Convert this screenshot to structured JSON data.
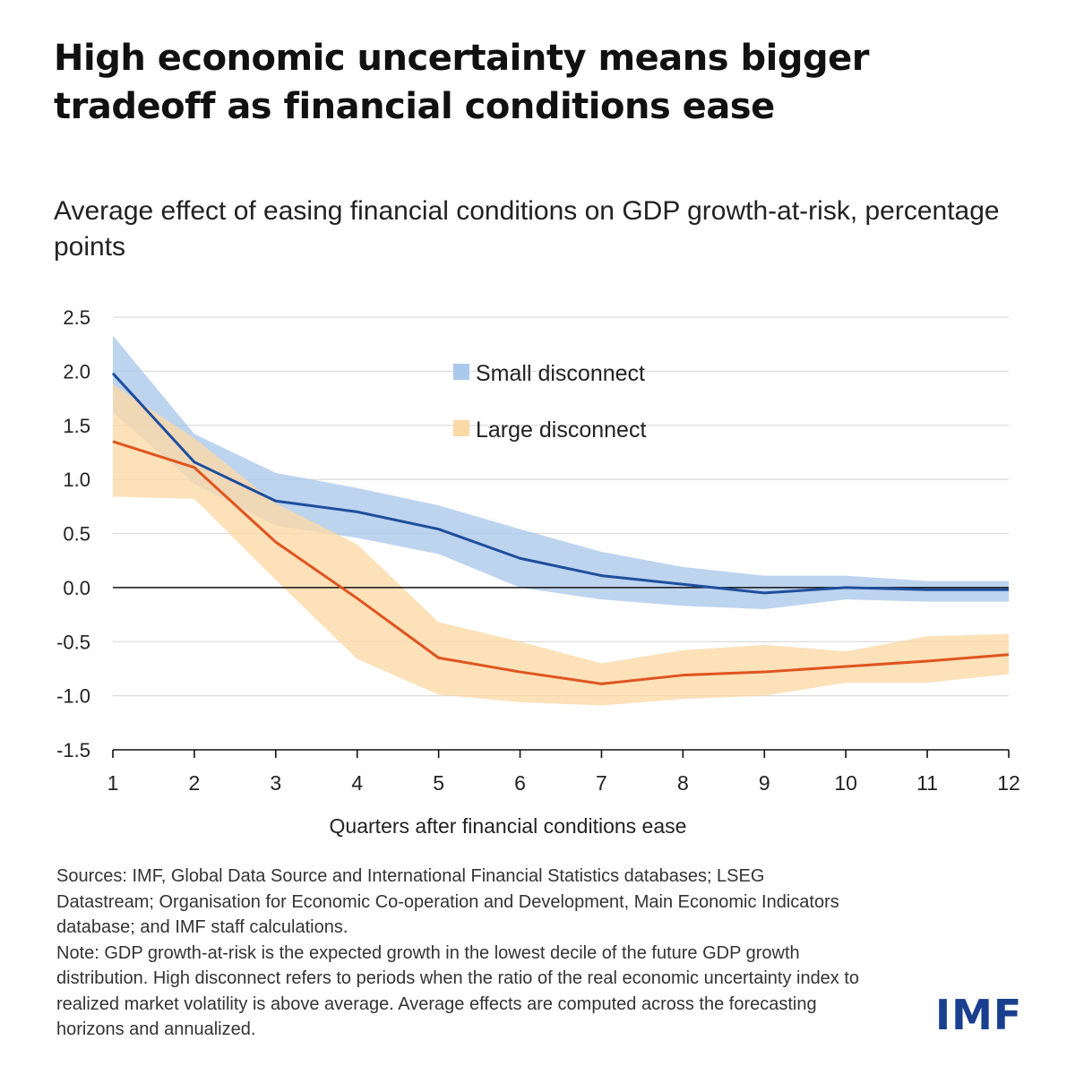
{
  "title": "High economic uncertainty means bigger tradeoff as financial conditions ease",
  "chart_data": {
    "type": "line",
    "title": "Average effect of easing financial conditions on GDP growth-at-risk, percentage points",
    "xlabel": "Quarters after financial conditions ease",
    "ylabel": "",
    "x": [
      1,
      2,
      3,
      4,
      5,
      6,
      7,
      8,
      9,
      10,
      11,
      12
    ],
    "x_tick_labels": [
      "1",
      "2",
      "3",
      "4",
      "5",
      "6",
      "7",
      "8",
      "9",
      "10",
      "11",
      "12"
    ],
    "y_ticks": [
      2.5,
      2.0,
      1.5,
      1.0,
      0.5,
      0.0,
      -0.5,
      -1.0,
      -1.5
    ],
    "y_tick_labels": [
      "2.5",
      "2.0",
      "1.5",
      "1.0",
      "0.5",
      "0.0",
      "-0.5",
      "-1.0",
      "-1.5"
    ],
    "ylim": [
      -1.5,
      2.5
    ],
    "grid": true,
    "legend_position": "top-center",
    "series": [
      {
        "name": "Small disconnect",
        "line_color": "#1f4e9c",
        "band_color": "#aac8ea",
        "values": [
          1.98,
          1.16,
          0.8,
          0.7,
          0.54,
          0.27,
          0.11,
          0.03,
          -0.05,
          0.0,
          -0.02,
          -0.02
        ],
        "upper": [
          2.33,
          1.42,
          1.06,
          0.92,
          0.76,
          0.54,
          0.33,
          0.19,
          0.11,
          0.11,
          0.06,
          0.06
        ],
        "lower": [
          1.62,
          0.96,
          0.57,
          0.46,
          0.31,
          0.0,
          -0.11,
          -0.17,
          -0.2,
          -0.11,
          -0.13,
          -0.13
        ]
      },
      {
        "name": "Large disconnect",
        "line_color": "#e0541f",
        "band_color": "#fbd9a5",
        "values": [
          1.35,
          1.11,
          0.42,
          -0.1,
          -0.65,
          -0.78,
          -0.89,
          -0.81,
          -0.78,
          -0.73,
          -0.68,
          -0.62
        ],
        "upper": [
          1.88,
          1.38,
          0.78,
          0.4,
          -0.32,
          -0.5,
          -0.7,
          -0.58,
          -0.53,
          -0.59,
          -0.45,
          -0.43
        ],
        "lower": [
          0.84,
          0.82,
          0.07,
          -0.66,
          -0.99,
          -1.06,
          -1.09,
          -1.03,
          -1.0,
          -0.88,
          -0.88,
          -0.8
        ]
      }
    ]
  },
  "notes": {
    "sources": "Sources: IMF, Global Data Source and International Financial Statistics databases; LSEG Datastream; Organisation for Economic Co-operation and Development, Main Economic Indicators database; and IMF staff calculations.",
    "note": "Note: GDP growth-at-risk is the expected growth in the lowest decile of the future GDP growth distribution. High disconnect refers to periods when the ratio of the real economic uncertainty index to realized market volatility is above average. Average effects are computed across the forecasting horizons and annualized."
  },
  "logo": "IMF"
}
